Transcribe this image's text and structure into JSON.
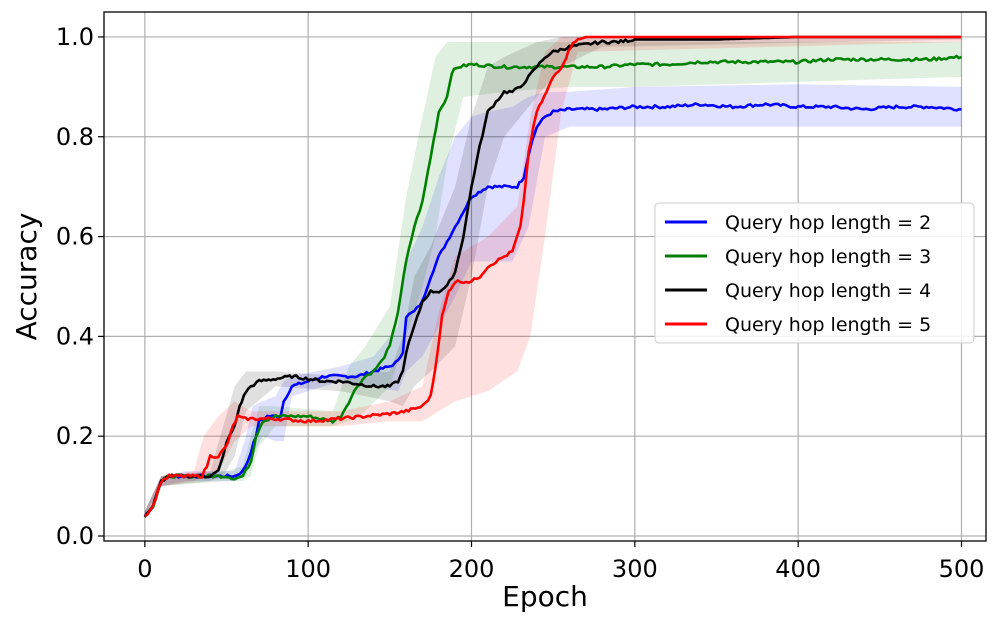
{
  "chart_data": {
    "type": "line",
    "title": "",
    "xlabel": "Epoch",
    "ylabel": "Accuracy",
    "xlim": [
      -25,
      515
    ],
    "ylim": [
      -0.01,
      1.05
    ],
    "xticks": [
      0,
      100,
      200,
      300,
      400,
      500
    ],
    "xtick_labels": [
      "0",
      "100",
      "200",
      "300",
      "400",
      "500"
    ],
    "yticks": [
      0.0,
      0.2,
      0.4,
      0.6,
      0.8,
      1.0
    ],
    "ytick_labels": [
      "0.0",
      "0.2",
      "0.4",
      "0.6",
      "0.8",
      "1.0"
    ],
    "grid": true,
    "legend_position": "center-right",
    "series": [
      {
        "name": "Query hop length = 2",
        "color": "#0000ff",
        "points": [
          [
            0,
            0.04
          ],
          [
            5,
            0.06
          ],
          [
            10,
            0.11
          ],
          [
            15,
            0.12
          ],
          [
            25,
            0.12
          ],
          [
            40,
            0.12
          ],
          [
            55,
            0.12
          ],
          [
            60,
            0.13
          ],
          [
            63,
            0.15
          ],
          [
            65,
            0.17
          ],
          [
            68,
            0.2
          ],
          [
            70,
            0.23
          ],
          [
            75,
            0.24
          ],
          [
            80,
            0.24
          ],
          [
            83,
            0.24
          ],
          [
            85,
            0.27
          ],
          [
            90,
            0.3
          ],
          [
            100,
            0.31
          ],
          [
            110,
            0.32
          ],
          [
            120,
            0.32
          ],
          [
            130,
            0.32
          ],
          [
            140,
            0.33
          ],
          [
            150,
            0.34
          ],
          [
            155,
            0.35
          ],
          [
            158,
            0.37
          ],
          [
            160,
            0.44
          ],
          [
            165,
            0.45
          ],
          [
            170,
            0.47
          ],
          [
            175,
            0.52
          ],
          [
            180,
            0.56
          ],
          [
            185,
            0.59
          ],
          [
            190,
            0.62
          ],
          [
            195,
            0.65
          ],
          [
            200,
            0.68
          ],
          [
            210,
            0.7
          ],
          [
            220,
            0.7
          ],
          [
            228,
            0.7
          ],
          [
            232,
            0.72
          ],
          [
            236,
            0.78
          ],
          [
            240,
            0.82
          ],
          [
            245,
            0.84
          ],
          [
            250,
            0.85
          ],
          [
            260,
            0.855
          ],
          [
            280,
            0.855
          ],
          [
            300,
            0.86
          ],
          [
            320,
            0.86
          ],
          [
            340,
            0.865
          ],
          [
            360,
            0.86
          ],
          [
            380,
            0.865
          ],
          [
            400,
            0.86
          ],
          [
            420,
            0.86
          ],
          [
            440,
            0.855
          ],
          [
            460,
            0.86
          ],
          [
            480,
            0.86
          ],
          [
            500,
            0.855
          ]
        ],
        "band": [
          [
            0,
            0.04,
            0.05
          ],
          [
            10,
            0.1,
            0.12
          ],
          [
            25,
            0.11,
            0.13
          ],
          [
            55,
            0.11,
            0.13
          ],
          [
            62,
            0.12,
            0.2
          ],
          [
            66,
            0.16,
            0.26
          ],
          [
            72,
            0.2,
            0.27
          ],
          [
            80,
            0.19,
            0.28
          ],
          [
            85,
            0.19,
            0.31
          ],
          [
            90,
            0.28,
            0.32
          ],
          [
            120,
            0.31,
            0.34
          ],
          [
            140,
            0.3,
            0.36
          ],
          [
            155,
            0.29,
            0.42
          ],
          [
            160,
            0.33,
            0.55
          ],
          [
            170,
            0.36,
            0.62
          ],
          [
            180,
            0.42,
            0.72
          ],
          [
            190,
            0.48,
            0.8
          ],
          [
            200,
            0.55,
            0.84
          ],
          [
            210,
            0.55,
            0.85
          ],
          [
            225,
            0.55,
            0.86
          ],
          [
            235,
            0.62,
            0.88
          ],
          [
            245,
            0.8,
            0.89
          ],
          [
            260,
            0.82,
            0.89
          ],
          [
            300,
            0.82,
            0.9
          ],
          [
            400,
            0.82,
            0.905
          ],
          [
            500,
            0.82,
            0.9
          ]
        ]
      },
      {
        "name": "Query hop length = 3",
        "color": "#008000",
        "points": [
          [
            0,
            0.04
          ],
          [
            5,
            0.06
          ],
          [
            10,
            0.11
          ],
          [
            15,
            0.12
          ],
          [
            30,
            0.12
          ],
          [
            45,
            0.12
          ],
          [
            50,
            0.12
          ],
          [
            55,
            0.115
          ],
          [
            60,
            0.12
          ],
          [
            65,
            0.15
          ],
          [
            68,
            0.2
          ],
          [
            72,
            0.23
          ],
          [
            80,
            0.24
          ],
          [
            100,
            0.24
          ],
          [
            115,
            0.23
          ],
          [
            120,
            0.24
          ],
          [
            125,
            0.27
          ],
          [
            130,
            0.3
          ],
          [
            135,
            0.32
          ],
          [
            140,
            0.33
          ],
          [
            145,
            0.35
          ],
          [
            150,
            0.38
          ],
          [
            155,
            0.45
          ],
          [
            160,
            0.55
          ],
          [
            165,
            0.62
          ],
          [
            170,
            0.67
          ],
          [
            175,
            0.76
          ],
          [
            180,
            0.85
          ],
          [
            185,
            0.88
          ],
          [
            188,
            0.93
          ],
          [
            192,
            0.94
          ],
          [
            200,
            0.945
          ],
          [
            220,
            0.94
          ],
          [
            240,
            0.94
          ],
          [
            260,
            0.94
          ],
          [
            280,
            0.94
          ],
          [
            300,
            0.945
          ],
          [
            320,
            0.945
          ],
          [
            340,
            0.95
          ],
          [
            360,
            0.95
          ],
          [
            380,
            0.95
          ],
          [
            400,
            0.95
          ],
          [
            420,
            0.955
          ],
          [
            440,
            0.955
          ],
          [
            460,
            0.955
          ],
          [
            480,
            0.955
          ],
          [
            500,
            0.96
          ]
        ],
        "band": [
          [
            0,
            0.04,
            0.05
          ],
          [
            10,
            0.1,
            0.12
          ],
          [
            50,
            0.11,
            0.13
          ],
          [
            60,
            0.11,
            0.14
          ],
          [
            65,
            0.12,
            0.2
          ],
          [
            70,
            0.18,
            0.26
          ],
          [
            80,
            0.22,
            0.26
          ],
          [
            115,
            0.22,
            0.25
          ],
          [
            125,
            0.23,
            0.34
          ],
          [
            135,
            0.25,
            0.38
          ],
          [
            150,
            0.3,
            0.46
          ],
          [
            160,
            0.4,
            0.68
          ],
          [
            170,
            0.5,
            0.84
          ],
          [
            178,
            0.6,
            0.96
          ],
          [
            185,
            0.75,
            0.99
          ],
          [
            195,
            0.88,
            0.99
          ],
          [
            220,
            0.89,
            0.99
          ],
          [
            260,
            0.9,
            0.99
          ],
          [
            300,
            0.9,
            0.99
          ],
          [
            400,
            0.91,
            0.99
          ],
          [
            500,
            0.92,
            0.99
          ]
        ]
      },
      {
        "name": "Query hop length = 4",
        "color": "#000000",
        "points": [
          [
            0,
            0.04
          ],
          [
            5,
            0.06
          ],
          [
            10,
            0.11
          ],
          [
            15,
            0.12
          ],
          [
            30,
            0.12
          ],
          [
            40,
            0.12
          ],
          [
            45,
            0.13
          ],
          [
            48,
            0.16
          ],
          [
            50,
            0.19
          ],
          [
            52,
            0.2
          ],
          [
            55,
            0.22
          ],
          [
            58,
            0.26
          ],
          [
            62,
            0.29
          ],
          [
            65,
            0.3
          ],
          [
            70,
            0.31
          ],
          [
            80,
            0.315
          ],
          [
            90,
            0.32
          ],
          [
            100,
            0.315
          ],
          [
            110,
            0.31
          ],
          [
            120,
            0.31
          ],
          [
            130,
            0.305
          ],
          [
            140,
            0.3
          ],
          [
            150,
            0.3
          ],
          [
            155,
            0.31
          ],
          [
            158,
            0.33
          ],
          [
            160,
            0.37
          ],
          [
            165,
            0.42
          ],
          [
            170,
            0.47
          ],
          [
            175,
            0.49
          ],
          [
            180,
            0.49
          ],
          [
            185,
            0.5
          ],
          [
            190,
            0.53
          ],
          [
            195,
            0.6
          ],
          [
            200,
            0.7
          ],
          [
            205,
            0.78
          ],
          [
            210,
            0.85
          ],
          [
            215,
            0.87
          ],
          [
            220,
            0.89
          ],
          [
            225,
            0.89
          ],
          [
            230,
            0.9
          ],
          [
            235,
            0.92
          ],
          [
            240,
            0.94
          ],
          [
            245,
            0.96
          ],
          [
            250,
            0.97
          ],
          [
            260,
            0.98
          ],
          [
            270,
            0.985
          ],
          [
            280,
            0.99
          ],
          [
            290,
            0.99
          ],
          [
            300,
            0.995
          ],
          [
            350,
            0.995
          ],
          [
            400,
            1.0
          ],
          [
            450,
            1.0
          ],
          [
            500,
            1.0
          ]
        ],
        "band": [
          [
            0,
            0.04,
            0.05
          ],
          [
            10,
            0.1,
            0.12
          ],
          [
            40,
            0.11,
            0.13
          ],
          [
            48,
            0.12,
            0.22
          ],
          [
            55,
            0.16,
            0.3
          ],
          [
            62,
            0.25,
            0.33
          ],
          [
            80,
            0.3,
            0.33
          ],
          [
            120,
            0.29,
            0.32
          ],
          [
            150,
            0.27,
            0.33
          ],
          [
            158,
            0.26,
            0.4
          ],
          [
            165,
            0.3,
            0.52
          ],
          [
            175,
            0.33,
            0.58
          ],
          [
            190,
            0.38,
            0.7
          ],
          [
            200,
            0.52,
            0.84
          ],
          [
            210,
            0.7,
            0.94
          ],
          [
            220,
            0.8,
            0.96
          ],
          [
            240,
            0.88,
            0.99
          ],
          [
            255,
            0.94,
            1.0
          ],
          [
            280,
            0.98,
            1.0
          ],
          [
            500,
            0.995,
            1.0
          ]
        ]
      },
      {
        "name": "Query hop length = 5",
        "color": "#ff0000",
        "points": [
          [
            0,
            0.04
          ],
          [
            5,
            0.06
          ],
          [
            10,
            0.11
          ],
          [
            15,
            0.12
          ],
          [
            25,
            0.12
          ],
          [
            35,
            0.12
          ],
          [
            38,
            0.14
          ],
          [
            40,
            0.16
          ],
          [
            45,
            0.16
          ],
          [
            50,
            0.18
          ],
          [
            54,
            0.22
          ],
          [
            57,
            0.24
          ],
          [
            60,
            0.235
          ],
          [
            80,
            0.235
          ],
          [
            100,
            0.23
          ],
          [
            120,
            0.235
          ],
          [
            135,
            0.24
          ],
          [
            150,
            0.245
          ],
          [
            160,
            0.25
          ],
          [
            170,
            0.26
          ],
          [
            175,
            0.28
          ],
          [
            178,
            0.34
          ],
          [
            182,
            0.44
          ],
          [
            186,
            0.49
          ],
          [
            190,
            0.51
          ],
          [
            195,
            0.51
          ],
          [
            200,
            0.51
          ],
          [
            205,
            0.52
          ],
          [
            210,
            0.54
          ],
          [
            215,
            0.55
          ],
          [
            220,
            0.56
          ],
          [
            225,
            0.57
          ],
          [
            228,
            0.6
          ],
          [
            230,
            0.62
          ],
          [
            232,
            0.67
          ],
          [
            235,
            0.77
          ],
          [
            238,
            0.82
          ],
          [
            240,
            0.85
          ],
          [
            243,
            0.87
          ],
          [
            246,
            0.89
          ],
          [
            250,
            0.92
          ],
          [
            255,
            0.94
          ],
          [
            258,
            0.96
          ],
          [
            262,
            0.99
          ],
          [
            270,
            1.0
          ],
          [
            300,
            1.0
          ],
          [
            350,
            1.0
          ],
          [
            400,
            1.0
          ],
          [
            450,
            1.0
          ],
          [
            500,
            1.0
          ]
        ],
        "band": [
          [
            0,
            0.04,
            0.05
          ],
          [
            10,
            0.1,
            0.12
          ],
          [
            30,
            0.11,
            0.13
          ],
          [
            36,
            0.12,
            0.2
          ],
          [
            45,
            0.13,
            0.24
          ],
          [
            55,
            0.19,
            0.27
          ],
          [
            65,
            0.22,
            0.25
          ],
          [
            120,
            0.22,
            0.25
          ],
          [
            150,
            0.23,
            0.27
          ],
          [
            170,
            0.23,
            0.3
          ],
          [
            180,
            0.25,
            0.45
          ],
          [
            190,
            0.27,
            0.56
          ],
          [
            210,
            0.29,
            0.6
          ],
          [
            228,
            0.33,
            0.66
          ],
          [
            236,
            0.4,
            0.84
          ],
          [
            245,
            0.6,
            0.97
          ],
          [
            255,
            0.85,
            1.0
          ],
          [
            265,
            0.97,
            1.0
          ],
          [
            500,
            0.99,
            1.0
          ]
        ]
      }
    ]
  }
}
